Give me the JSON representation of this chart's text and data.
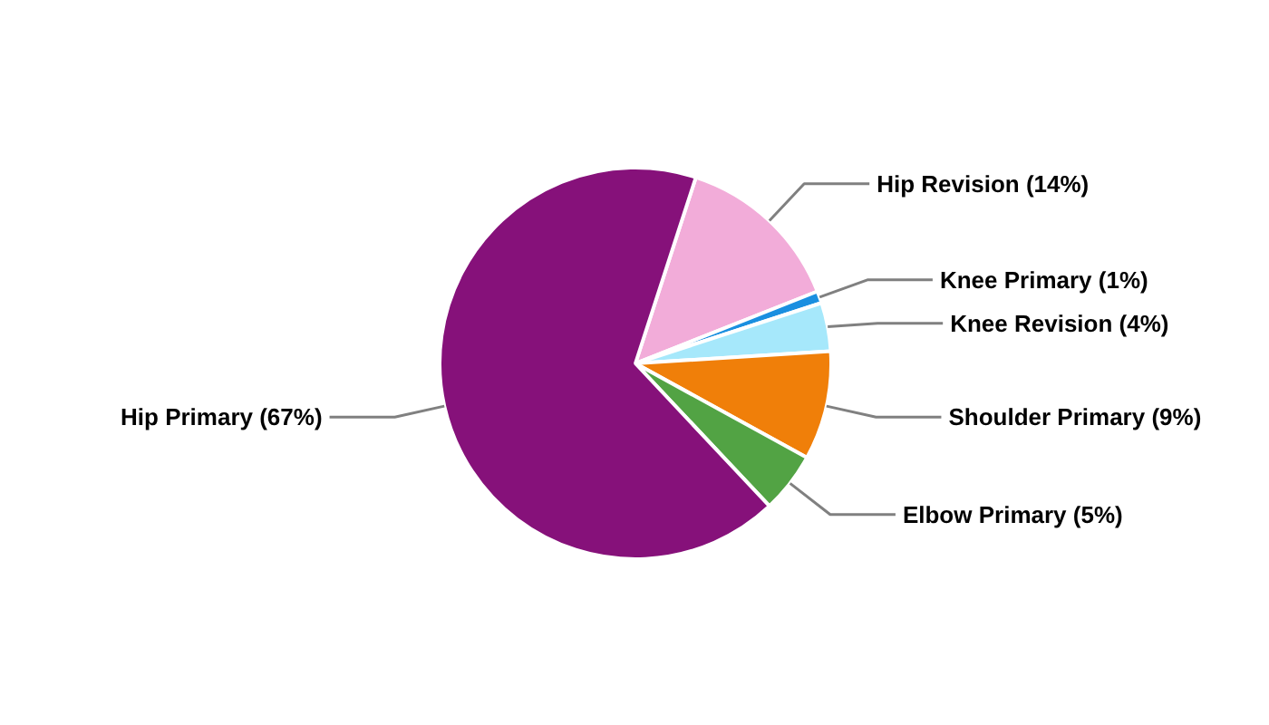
{
  "chart_data": {
    "type": "pie",
    "categories": [
      "Hip Revision",
      "Knee Primary",
      "Knee Revision",
      "Shoulder Primary",
      "Elbow Primary",
      "Hip Primary"
    ],
    "values": [
      14,
      1,
      4,
      9,
      5,
      67
    ],
    "value_labels": [
      "(14%)",
      "(1%)",
      "(4%)",
      "(9%)",
      "(5%)",
      "(67%)"
    ],
    "colors": [
      "#f2acd9",
      "#1a8fe0",
      "#a6e8fb",
      "#f07f09",
      "#52a344",
      "#86117a"
    ],
    "legend": false
  }
}
